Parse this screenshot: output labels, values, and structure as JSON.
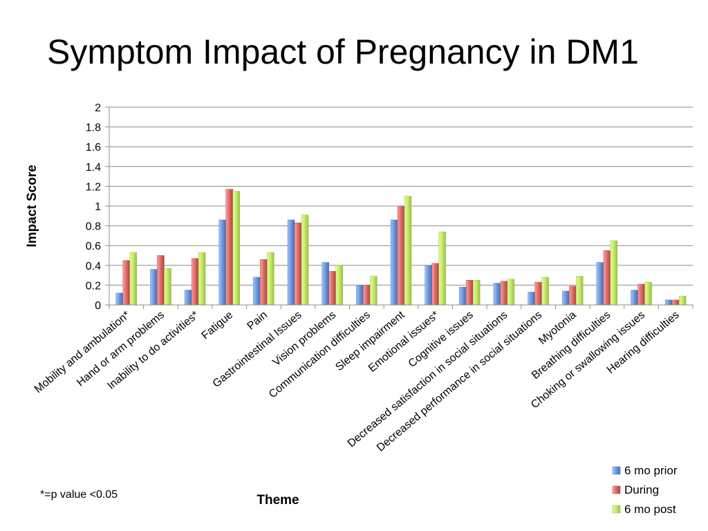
{
  "slide": {
    "title": "Symptom Impact of Pregnancy in DM1",
    "footnote": "*=p value <0.05"
  },
  "chart_data": {
    "type": "bar",
    "title": "",
    "xlabel": "Theme",
    "ylabel": "Impact Score",
    "ylim": [
      0,
      2
    ],
    "yticks": [
      "0",
      "0.2",
      "0.4",
      "0.6",
      "0.8",
      "1",
      "1.2",
      "1.4",
      "1.6",
      "1.8",
      "2"
    ],
    "grid": true,
    "legend_position": "bottom-right",
    "categories": [
      "Mobility and ambulation*",
      "Hand or arm problems",
      "Inability to do activities*",
      "Fatigue",
      "Pain",
      "Gastrointestinal Issues",
      "Vision problems",
      "Communication difficulties",
      "Sleep impairment",
      "Emotional issues*",
      "Cognitive issues",
      "Decreased satisfaction in social situations",
      "Decreased performance in social situations",
      "Myotonia",
      "Breathing difficulties",
      "Choking or swallowing issues",
      "Hearing difficulties"
    ],
    "series": [
      {
        "name": "6 mo prior",
        "color": "#4f81bd",
        "values": [
          0.12,
          0.36,
          0.15,
          0.86,
          0.28,
          0.86,
          0.43,
          0.2,
          0.86,
          0.4,
          0.18,
          0.22,
          0.13,
          0.14,
          0.43,
          0.15,
          0.05
        ]
      },
      {
        "name": "During",
        "color": "#c0504d",
        "values": [
          0.45,
          0.5,
          0.47,
          1.17,
          0.46,
          0.83,
          0.34,
          0.2,
          1.0,
          0.42,
          0.25,
          0.24,
          0.23,
          0.19,
          0.55,
          0.21,
          0.05
        ]
      },
      {
        "name": "6 mo post",
        "color": "#9bbb59",
        "values": [
          0.53,
          0.37,
          0.53,
          1.15,
          0.53,
          0.91,
          0.4,
          0.29,
          1.1,
          0.74,
          0.25,
          0.26,
          0.28,
          0.29,
          0.65,
          0.23,
          0.09
        ]
      }
    ]
  }
}
